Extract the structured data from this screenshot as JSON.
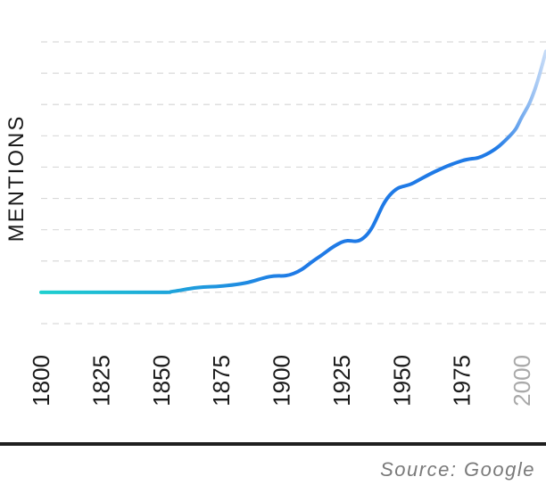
{
  "chart_data": {
    "type": "line",
    "title": "",
    "xlabel": "",
    "ylabel": "MENTIONS",
    "source": "Source: Google",
    "xlim": [
      1800,
      2010
    ],
    "ylim": [
      -1,
      8
    ],
    "grid": true,
    "x_ticks": [
      "1800",
      "1825",
      "1850",
      "1875",
      "1900",
      "1925",
      "1950",
      "1975",
      "2000"
    ],
    "series": [
      {
        "x": [
          1800,
          1825,
          1850,
          1855,
          1865,
          1875,
          1885,
          1895,
          1905,
          1915,
          1925,
          1935,
          1945,
          1955,
          1965,
          1975,
          1985,
          1995,
          2000,
          2005,
          2010
        ],
        "y": [
          0,
          0,
          0,
          0.03,
          0.15,
          0.2,
          0.3,
          0.5,
          0.6,
          1.1,
          1.6,
          1.8,
          3.1,
          3.5,
          3.9,
          4.2,
          4.4,
          5.0,
          5.6,
          6.4,
          7.7
        ]
      }
    ],
    "colors": {
      "start": "#1ed0cf",
      "mid": "#1f7ae6",
      "end": "#c8dcf7"
    }
  }
}
